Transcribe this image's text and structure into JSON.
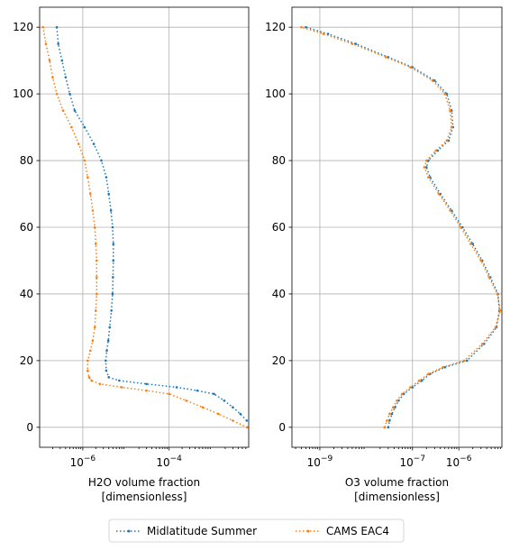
{
  "chart_data": [
    {
      "type": "line",
      "xlabel": "H2O volume fraction",
      "xlabel_line2": "[dimensionless]",
      "ylabel": "",
      "xscale": "log",
      "xlim": [
        1e-07,
        0.007
      ],
      "ylim": [
        -6,
        126
      ],
      "xticks": [
        {
          "value": 1e-06,
          "base": "10",
          "exp": "−6"
        },
        {
          "value": 0.0001,
          "base": "10",
          "exp": "−4"
        }
      ],
      "yticks": [
        0,
        20,
        40,
        60,
        80,
        100,
        120
      ],
      "grid": true,
      "series": [
        {
          "name": "Midlatitude Summer",
          "color": "#1f77b4",
          "points": [
            [
              0.0063,
              2
            ],
            [
              0.0045,
              4
            ],
            [
              0.003,
              6
            ],
            [
              0.0019,
              8
            ],
            [
              0.0011,
              10
            ],
            [
              0.00045,
              11
            ],
            [
              0.00015,
              12
            ],
            [
              3e-05,
              13
            ],
            [
              7e-06,
              14
            ],
            [
              4e-06,
              15
            ],
            [
              3.5e-06,
              17
            ],
            [
              3.4e-06,
              20
            ],
            [
              3.6e-06,
              23
            ],
            [
              3.9e-06,
              26
            ],
            [
              4.2e-06,
              30
            ],
            [
              4.6e-06,
              35
            ],
            [
              4.9e-06,
              40
            ],
            [
              5e-06,
              45
            ],
            [
              5.1e-06,
              50
            ],
            [
              5.1e-06,
              55
            ],
            [
              4.9e-06,
              60
            ],
            [
              4.5e-06,
              65
            ],
            [
              4e-06,
              70
            ],
            [
              3.5e-06,
              75
            ],
            [
              2.7e-06,
              80
            ],
            [
              1.8e-06,
              85
            ],
            [
              1.1e-06,
              90
            ],
            [
              6.5e-07,
              95
            ],
            [
              5e-07,
              100
            ],
            [
              4e-07,
              105
            ],
            [
              3.3e-07,
              110
            ],
            [
              2.7e-07,
              115
            ],
            [
              2.5e-07,
              120
            ]
          ]
        },
        {
          "name": "CAMS EAC4",
          "color": "#ff7f0e",
          "points": [
            [
              0.0065,
              0
            ],
            [
              0.003,
              2
            ],
            [
              0.0014,
              4
            ],
            [
              0.0006,
              6
            ],
            [
              0.00025,
              8
            ],
            [
              0.0001,
              10
            ],
            [
              3e-05,
              11
            ],
            [
              8e-06,
              12
            ],
            [
              2.5e-06,
              13
            ],
            [
              1.6e-06,
              14
            ],
            [
              1.4e-06,
              15
            ],
            [
              1.3e-06,
              17
            ],
            [
              1.3e-06,
              20
            ],
            [
              1.5e-06,
              23
            ],
            [
              1.7e-06,
              26
            ],
            [
              1.9e-06,
              30
            ],
            [
              2e-06,
              35
            ],
            [
              2.1e-06,
              40
            ],
            [
              2.1e-06,
              45
            ],
            [
              2.1e-06,
              50
            ],
            [
              2e-06,
              55
            ],
            [
              1.9e-06,
              60
            ],
            [
              1.7e-06,
              65
            ],
            [
              1.5e-06,
              70
            ],
            [
              1.3e-06,
              75
            ],
            [
              1.1e-06,
              80
            ],
            [
              8e-07,
              85
            ],
            [
              5.5e-07,
              90
            ],
            [
              3.5e-07,
              95
            ],
            [
              2.5e-07,
              100
            ],
            [
              2e-07,
              105
            ],
            [
              1.7e-07,
              110
            ],
            [
              1.4e-07,
              115
            ],
            [
              1.2e-07,
              120
            ]
          ]
        }
      ]
    },
    {
      "type": "line",
      "xlabel": "O3 volume fraction",
      "xlabel_line2": "[dimensionless]",
      "ylabel": "",
      "xscale": "log",
      "xlim": [
        2.5e-10,
        8.5e-06
      ],
      "ylim": [
        -6,
        126
      ],
      "xticks": [
        {
          "value": 1e-09,
          "base": "10",
          "exp": "−9"
        },
        {
          "value": 1e-07,
          "base": "10",
          "exp": "−7"
        },
        {
          "value": 1e-06,
          "base": "10",
          "exp": "−6"
        }
      ],
      "yticks": [
        0,
        20,
        40,
        60,
        80,
        100,
        120
      ],
      "grid": true,
      "series": [
        {
          "name": "Midlatitude Summer",
          "color": "#1f77b4",
          "points": [
            [
              3e-08,
              0
            ],
            [
              3.2e-08,
              2
            ],
            [
              3.6e-08,
              4
            ],
            [
              4.2e-08,
              6
            ],
            [
              5e-08,
              8
            ],
            [
              6.5e-08,
              10
            ],
            [
              1e-07,
              12
            ],
            [
              1.6e-07,
              14
            ],
            [
              2.4e-07,
              16
            ],
            [
              5e-07,
              18
            ],
            [
              1.5e-06,
              20
            ],
            [
              3.5e-06,
              25
            ],
            [
              6.5e-06,
              30
            ],
            [
              7.5e-06,
              35
            ],
            [
              7e-06,
              40
            ],
            [
              4.8e-06,
              45
            ],
            [
              3.2e-06,
              50
            ],
            [
              2e-06,
              55
            ],
            [
              1.2e-06,
              60
            ],
            [
              7e-07,
              65
            ],
            [
              4e-07,
              70
            ],
            [
              2.4e-07,
              75
            ],
            [
              2e-07,
              78
            ],
            [
              2.2e-07,
              80
            ],
            [
              3.5e-07,
              83
            ],
            [
              6e-07,
              86
            ],
            [
              7.5e-07,
              90
            ],
            [
              7e-07,
              95
            ],
            [
              5.5e-07,
              100
            ],
            [
              3e-07,
              104
            ],
            [
              1e-07,
              108
            ],
            [
              3e-08,
              111
            ],
            [
              6e-09,
              115
            ],
            [
              1.5e-09,
              118
            ],
            [
              5e-10,
              120
            ]
          ]
        },
        {
          "name": "CAMS EAC4",
          "color": "#ff7f0e",
          "points": [
            [
              2.5e-08,
              0
            ],
            [
              2.8e-08,
              2
            ],
            [
              3.2e-08,
              4
            ],
            [
              3.8e-08,
              6
            ],
            [
              4.6e-08,
              8
            ],
            [
              6e-08,
              10
            ],
            [
              9e-08,
              12
            ],
            [
              1.4e-07,
              14
            ],
            [
              2.2e-07,
              16
            ],
            [
              4.5e-07,
              18
            ],
            [
              1.3e-06,
              20
            ],
            [
              3.2e-06,
              25
            ],
            [
              6.2e-06,
              30
            ],
            [
              7.8e-06,
              35
            ],
            [
              6.8e-06,
              40
            ],
            [
              4.5e-06,
              45
            ],
            [
              3e-06,
              50
            ],
            [
              1.8e-06,
              55
            ],
            [
              1.1e-06,
              60
            ],
            [
              6.5e-07,
              65
            ],
            [
              3.7e-07,
              70
            ],
            [
              2.2e-07,
              75
            ],
            [
              1.8e-07,
              78
            ],
            [
              2e-07,
              80
            ],
            [
              3.2e-07,
              83
            ],
            [
              5.5e-07,
              86
            ],
            [
              7e-07,
              90
            ],
            [
              6.5e-07,
              95
            ],
            [
              5e-07,
              100
            ],
            [
              2.7e-07,
              104
            ],
            [
              9e-08,
              108
            ],
            [
              2.7e-08,
              111
            ],
            [
              5e-09,
              115
            ],
            [
              1.2e-09,
              118
            ],
            [
              4e-10,
              120
            ]
          ]
        }
      ]
    }
  ],
  "legend": {
    "placement": "bottom-center",
    "entries": [
      "Midlatitude Summer",
      "CAMS EAC4"
    ]
  }
}
